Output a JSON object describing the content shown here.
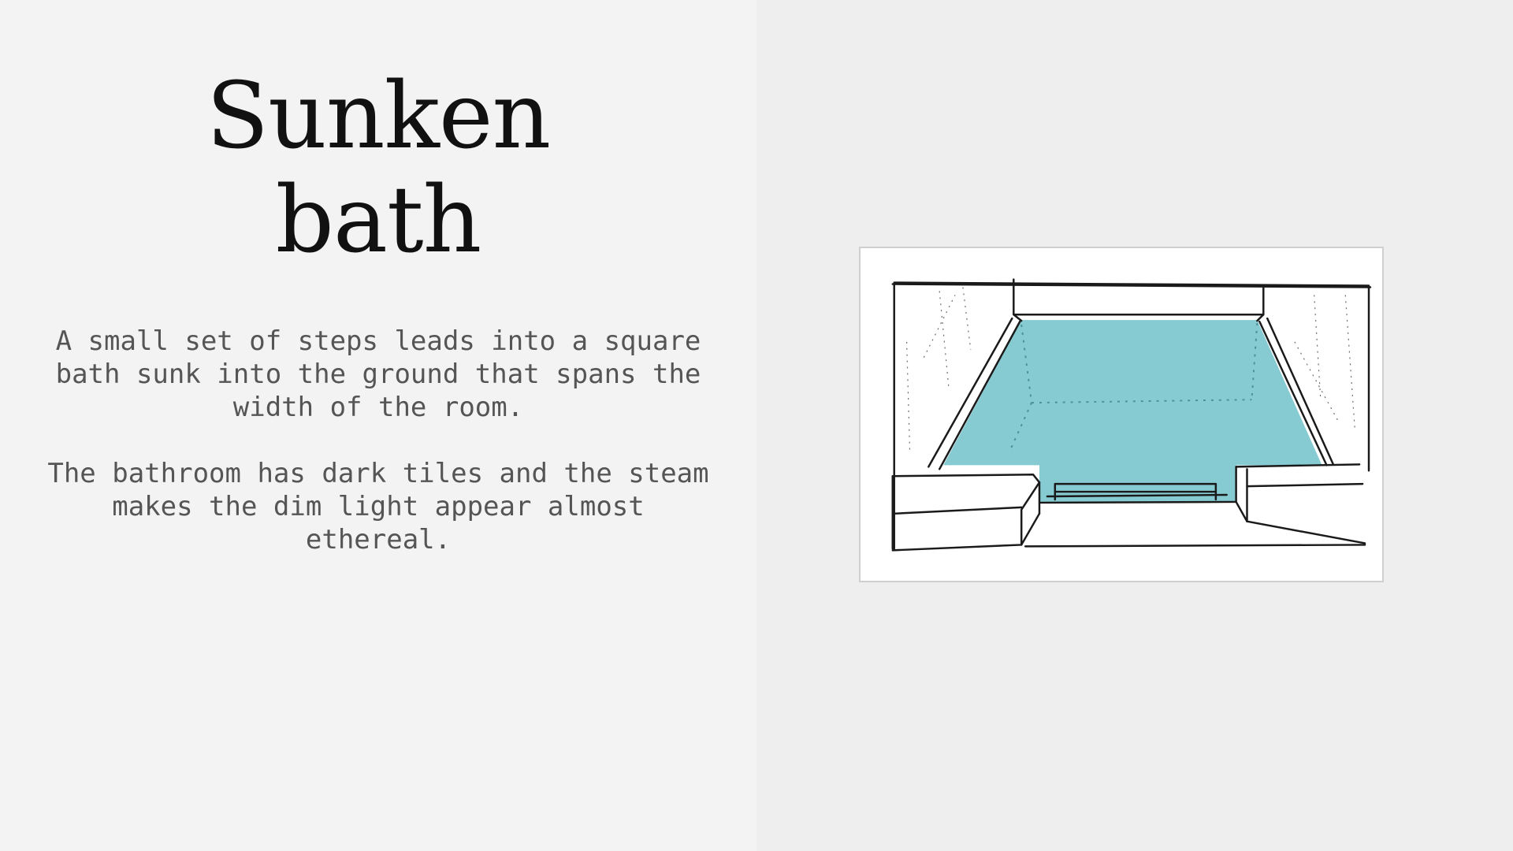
{
  "slide": {
    "title_line1": "Sunken",
    "title_line2": "bath",
    "paragraph1": "A small set of steps leads into a square bath sunk into the ground that spans the width of the room.",
    "paragraph2": "The bathroom has dark tiles and the steam makes the dim light appear almost ethereal."
  },
  "colors": {
    "left_background": "#f3f3f3",
    "right_background": "#eeeeee",
    "water": "#7fc8d0",
    "title_text": "#111111",
    "body_text": "#555555"
  },
  "image": {
    "subject": "pencil sketch of a sunken bath with turquoise water"
  }
}
